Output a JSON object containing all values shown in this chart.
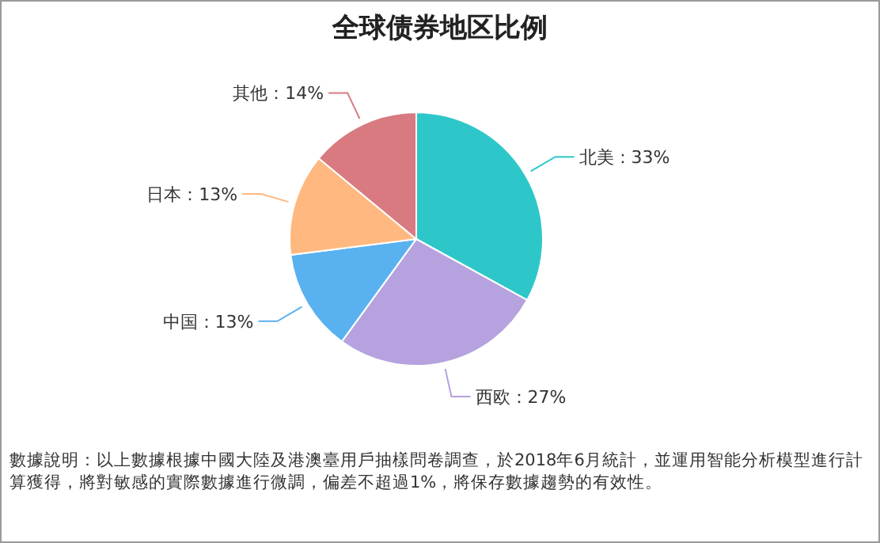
{
  "chart_data": {
    "type": "pie",
    "title": "全球债券地区比例",
    "categories": [
      "北美",
      "西欧",
      "中国",
      "日本",
      "其他"
    ],
    "values": [
      33,
      27,
      13,
      13,
      14
    ],
    "value_labels": [
      "33%",
      "27%",
      "13%",
      "13%",
      "14%"
    ],
    "colors": [
      "#2ec7c9",
      "#b6a2de",
      "#5ab1ef",
      "#ffb980",
      "#d87a80"
    ],
    "annotations": [
      "數據說明：以上數據根據中國大陸及港澳臺用戶抽樣問卷調查，於2018年6月統計，並運用智能分析模型進行計算獲得，將對敏感的實際數據進行微調，偏差不超過1%，將保存數據趨勢的有效性。"
    ]
  }
}
